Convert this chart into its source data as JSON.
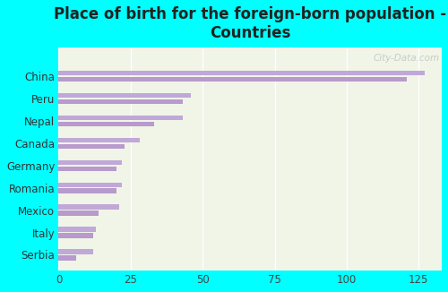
{
  "title": "Place of birth for the foreign-born population -\nCountries",
  "categories": [
    "China",
    "Peru",
    "Nepal",
    "Canada",
    "Germany",
    "Romania",
    "Mexico",
    "Italy",
    "Serbia"
  ],
  "values1": [
    127,
    46,
    43,
    28,
    22,
    22,
    21,
    13,
    12
  ],
  "values2": [
    121,
    43,
    33,
    23,
    20,
    20,
    14,
    12,
    6
  ],
  "bar_color": "#c0a8d8",
  "bar_color2": "#b89acc",
  "bg_outer": "#00ffff",
  "bg_plot_light": "#f0f5e8",
  "bg_plot_dark": "#ddeedd",
  "xlabel_ticks": [
    0,
    25,
    50,
    75,
    100,
    125
  ],
  "xlim": [
    0,
    133
  ],
  "ylim": [
    -0.7,
    9.3
  ],
  "title_fontsize": 12,
  "tick_fontsize": 8.5,
  "watermark_text": "City-Data.com",
  "title_color": "#222222"
}
